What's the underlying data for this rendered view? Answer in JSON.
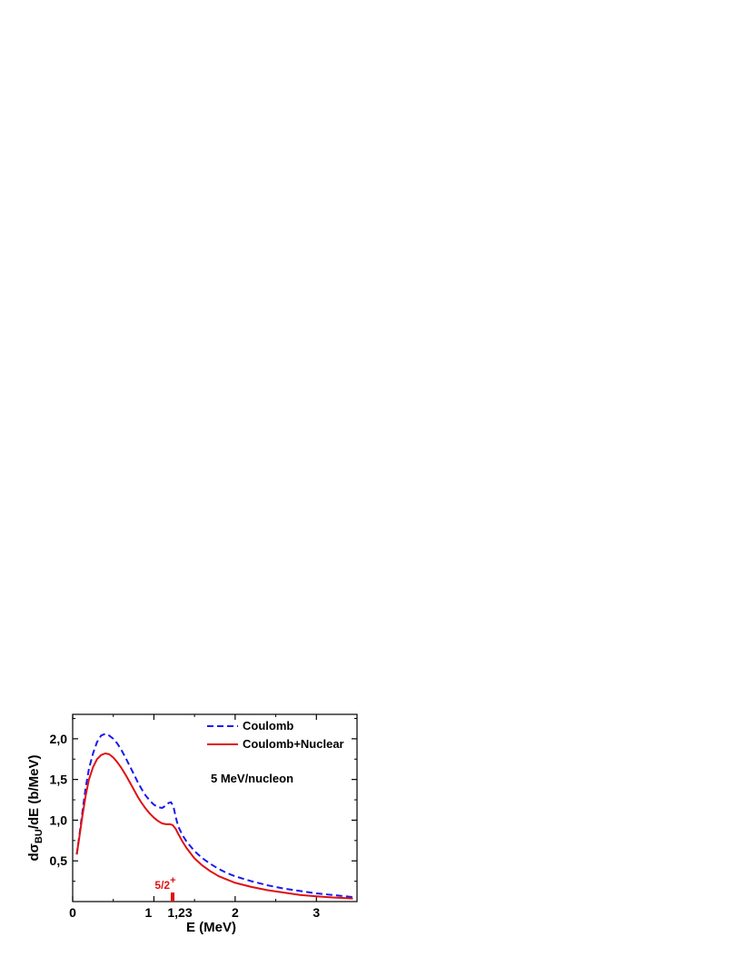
{
  "chart_data": {
    "type": "line",
    "xlabel": "E (MeV)",
    "ylabel_main": "dσ",
    "ylabel_sub": "BU",
    "ylabel_rest": "/dE (b/MeV)",
    "xlim": [
      0,
      3.5
    ],
    "ylim": [
      0,
      2.3
    ],
    "x_ticks": [
      {
        "value": 0,
        "label": "0"
      },
      {
        "value": 1,
        "label": "1"
      },
      {
        "value": 1.23,
        "label": "1,23"
      },
      {
        "value": 2,
        "label": "2"
      },
      {
        "value": 3,
        "label": "3"
      }
    ],
    "y_ticks": [
      {
        "value": 0.5,
        "label": "0,5"
      },
      {
        "value": 1.0,
        "label": "1,0"
      },
      {
        "value": 1.5,
        "label": "1,5"
      },
      {
        "value": 2.0,
        "label": "2,0"
      }
    ],
    "legend_position": "top-right",
    "annotation": "5 MeV/nucleon",
    "marker": {
      "x": 1.23,
      "label_main": "5/2",
      "label_sup": "+",
      "color": "#e01010"
    },
    "series": [
      {
        "name": "Coulomb",
        "color": "#1a1aee",
        "style": "dashed",
        "points": [
          [
            0.05,
            0.58
          ],
          [
            0.08,
            0.8
          ],
          [
            0.12,
            1.1
          ],
          [
            0.16,
            1.4
          ],
          [
            0.2,
            1.63
          ],
          [
            0.25,
            1.82
          ],
          [
            0.3,
            1.96
          ],
          [
            0.35,
            2.04
          ],
          [
            0.4,
            2.06
          ],
          [
            0.45,
            2.04
          ],
          [
            0.5,
            2.0
          ],
          [
            0.55,
            1.94
          ],
          [
            0.6,
            1.86
          ],
          [
            0.65,
            1.77
          ],
          [
            0.7,
            1.67
          ],
          [
            0.75,
            1.57
          ],
          [
            0.8,
            1.47
          ],
          [
            0.85,
            1.38
          ],
          [
            0.9,
            1.3
          ],
          [
            0.95,
            1.24
          ],
          [
            1.0,
            1.19
          ],
          [
            1.05,
            1.16
          ],
          [
            1.1,
            1.15
          ],
          [
            1.15,
            1.18
          ],
          [
            1.18,
            1.21
          ],
          [
            1.21,
            1.22
          ],
          [
            1.24,
            1.17
          ],
          [
            1.27,
            1.03
          ],
          [
            1.3,
            0.92
          ],
          [
            1.35,
            0.82
          ],
          [
            1.4,
            0.74
          ],
          [
            1.5,
            0.62
          ],
          [
            1.6,
            0.53
          ],
          [
            1.7,
            0.46
          ],
          [
            1.8,
            0.4
          ],
          [
            1.9,
            0.35
          ],
          [
            2.0,
            0.31
          ],
          [
            2.2,
            0.25
          ],
          [
            2.4,
            0.2
          ],
          [
            2.6,
            0.16
          ],
          [
            2.8,
            0.13
          ],
          [
            3.0,
            0.1
          ],
          [
            3.2,
            0.08
          ],
          [
            3.4,
            0.06
          ],
          [
            3.45,
            0.055
          ]
        ]
      },
      {
        "name": "Coulomb+Nuclear",
        "color": "#e01010",
        "style": "solid",
        "points": [
          [
            0.05,
            0.58
          ],
          [
            0.08,
            0.78
          ],
          [
            0.12,
            1.05
          ],
          [
            0.16,
            1.3
          ],
          [
            0.2,
            1.5
          ],
          [
            0.25,
            1.65
          ],
          [
            0.3,
            1.75
          ],
          [
            0.35,
            1.8
          ],
          [
            0.4,
            1.82
          ],
          [
            0.45,
            1.81
          ],
          [
            0.5,
            1.77
          ],
          [
            0.55,
            1.71
          ],
          [
            0.6,
            1.64
          ],
          [
            0.65,
            1.56
          ],
          [
            0.7,
            1.47
          ],
          [
            0.75,
            1.38
          ],
          [
            0.8,
            1.29
          ],
          [
            0.85,
            1.21
          ],
          [
            0.9,
            1.14
          ],
          [
            0.95,
            1.08
          ],
          [
            1.0,
            1.03
          ],
          [
            1.05,
            0.99
          ],
          [
            1.1,
            0.96
          ],
          [
            1.15,
            0.95
          ],
          [
            1.2,
            0.95
          ],
          [
            1.23,
            0.94
          ],
          [
            1.27,
            0.89
          ],
          [
            1.3,
            0.83
          ],
          [
            1.35,
            0.74
          ],
          [
            1.4,
            0.66
          ],
          [
            1.5,
            0.53
          ],
          [
            1.6,
            0.44
          ],
          [
            1.7,
            0.37
          ],
          [
            1.8,
            0.31
          ],
          [
            1.9,
            0.27
          ],
          [
            2.0,
            0.23
          ],
          [
            2.2,
            0.18
          ],
          [
            2.4,
            0.14
          ],
          [
            2.6,
            0.11
          ],
          [
            2.8,
            0.08
          ],
          [
            3.0,
            0.065
          ],
          [
            3.2,
            0.05
          ],
          [
            3.4,
            0.04
          ],
          [
            3.45,
            0.038
          ]
        ]
      }
    ]
  }
}
